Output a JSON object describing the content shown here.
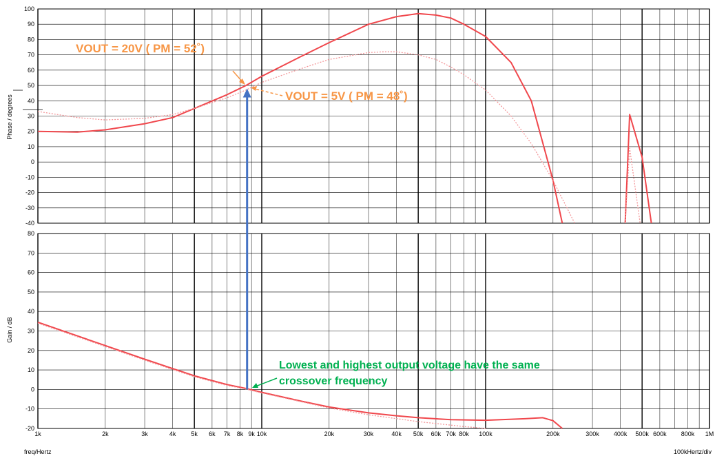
{
  "chart_data": [
    {
      "type": "line",
      "panel": "phase",
      "ylabel": "Phase / degrees",
      "ylim": [
        -40,
        100
      ],
      "yticks": [
        100,
        90,
        80,
        70,
        60,
        50,
        40,
        30,
        20,
        10,
        0,
        -10,
        -20,
        -30,
        -40
      ],
      "xscale": "log",
      "xlim": [
        1000,
        1000000
      ],
      "grid": true,
      "series": [
        {
          "color": "#f0474c",
          "style": "solid",
          "points": [
            [
              1000,
              20
            ],
            [
              1500,
              19.5
            ],
            [
              2000,
              21
            ],
            [
              3000,
              25
            ],
            [
              4000,
              29
            ],
            [
              5000,
              35
            ],
            [
              7000,
              44
            ],
            [
              8500,
              50
            ],
            [
              10000,
              56
            ],
            [
              15000,
              69
            ],
            [
              20000,
              78
            ],
            [
              30000,
              90
            ],
            [
              40000,
              95
            ],
            [
              50000,
              97
            ],
            [
              60000,
              96
            ],
            [
              70000,
              94
            ],
            [
              80000,
              90
            ],
            [
              100000,
              82
            ],
            [
              130000,
              65
            ],
            [
              160000,
              40
            ],
            [
              200000,
              -12
            ],
            [
              220000,
              -40
            ]
          ]
        },
        {
          "color": "#f3979a",
          "style": "dotted",
          "points": [
            [
              1000,
              33
            ],
            [
              1500,
              29
            ],
            [
              2000,
              27.5
            ],
            [
              3000,
              28.5
            ],
            [
              4000,
              31
            ],
            [
              5000,
              35
            ],
            [
              7000,
              42
            ],
            [
              8500,
              47
            ],
            [
              10000,
              52
            ],
            [
              15000,
              61
            ],
            [
              20000,
              67
            ],
            [
              30000,
              71.5
            ],
            [
              35000,
              72
            ],
            [
              40000,
              72
            ],
            [
              50000,
              70
            ],
            [
              60000,
              67
            ],
            [
              70000,
              62
            ],
            [
              80000,
              57
            ],
            [
              100000,
              47
            ],
            [
              130000,
              30
            ],
            [
              160000,
              12
            ],
            [
              200000,
              -12
            ],
            [
              250000,
              -40
            ]
          ]
        },
        {
          "color": "#f0474c",
          "style": "solid",
          "points": [
            [
              420000,
              -40
            ],
            [
              440000,
              31
            ],
            [
              480000,
              12
            ],
            [
              500000,
              3
            ],
            [
              550000,
              -40
            ]
          ]
        },
        {
          "color": "#f3979a",
          "style": "dotted",
          "points": [
            [
              420000,
              -40
            ],
            [
              440000,
              9
            ],
            [
              490000,
              -40
            ]
          ]
        }
      ]
    },
    {
      "type": "line",
      "panel": "gain",
      "ylabel": "Gain / dB",
      "xlabel": "freq/Hertz",
      "ylim": [
        -20,
        80
      ],
      "yticks": [
        80,
        70,
        60,
        50,
        40,
        30,
        20,
        10,
        0,
        -10,
        -20
      ],
      "xscale": "log",
      "xlim": [
        1000,
        1000000
      ],
      "grid": true,
      "series": [
        {
          "color": "#f0474c",
          "style": "solid",
          "points": [
            [
              1000,
              34.5
            ],
            [
              2000,
              22.5
            ],
            [
              3000,
              15.5
            ],
            [
              5000,
              7
            ],
            [
              7000,
              2.5
            ],
            [
              8500,
              0.5
            ],
            [
              10000,
              -1.5
            ],
            [
              15000,
              -6
            ],
            [
              20000,
              -9
            ],
            [
              30000,
              -12
            ],
            [
              40000,
              -13.5
            ],
            [
              50000,
              -14.5
            ],
            [
              70000,
              -15.5
            ],
            [
              100000,
              -15.8
            ],
            [
              150000,
              -15
            ],
            [
              180000,
              -14.5
            ],
            [
              200000,
              -16
            ],
            [
              220000,
              -20
            ]
          ]
        },
        {
          "color": "#f3979a",
          "style": "dotted",
          "points": [
            [
              1000,
              34
            ],
            [
              2000,
              22
            ],
            [
              3000,
              15
            ],
            [
              5000,
              6.5
            ],
            [
              7000,
              2
            ],
            [
              8500,
              0.2
            ],
            [
              10000,
              -1.8
            ],
            [
              20000,
              -9.5
            ],
            [
              30000,
              -13
            ],
            [
              50000,
              -16.5
            ],
            [
              80000,
              -19
            ],
            [
              100000,
              -20
            ]
          ]
        }
      ]
    }
  ],
  "x_tick_labels": [
    {
      "f": 1000,
      "label": "1k"
    },
    {
      "f": 2000,
      "label": "2k"
    },
    {
      "f": 3000,
      "label": "3k"
    },
    {
      "f": 4000,
      "label": "4k"
    },
    {
      "f": 5000,
      "label": "5k"
    },
    {
      "f": 6000,
      "label": "6k"
    },
    {
      "f": 7000,
      "label": "7k"
    },
    {
      "f": 8000,
      "label": "8k"
    },
    {
      "f": 9000,
      "label": "9k"
    },
    {
      "f": 10000,
      "label": "10k"
    },
    {
      "f": 20000,
      "label": "20k"
    },
    {
      "f": 30000,
      "label": "30k"
    },
    {
      "f": 40000,
      "label": "40k"
    },
    {
      "f": 50000,
      "label": "50k"
    },
    {
      "f": 60000,
      "label": "60k"
    },
    {
      "f": 70000,
      "label": "70k"
    },
    {
      "f": 80000,
      "label": "80k"
    },
    {
      "f": 100000,
      "label": "100k"
    },
    {
      "f": 200000,
      "label": "200k"
    },
    {
      "f": 300000,
      "label": "300k"
    },
    {
      "f": 400000,
      "label": "400k"
    },
    {
      "f": 500000,
      "label": "500k"
    },
    {
      "f": 600000,
      "label": "600k"
    },
    {
      "f": 800000,
      "label": "800k"
    },
    {
      "f": 1000000,
      "label": "1M"
    }
  ],
  "xlabel": "freq/Hertz",
  "xdiv_label": "100kHertz/div",
  "annotations": {
    "vout20": "VOUT = 20V ( PM = 52˚)",
    "vout5": "VOUT = 5V ( PM = 48˚)",
    "crossover_line1": "Lowest and highest output voltage have the same",
    "crossover_line2": "crossover frequency"
  },
  "crossover_marker_freq": 8600,
  "colors": {
    "trace_solid": "#f0474c",
    "trace_dotted": "#f3979a",
    "annotation_orange": "#f79646",
    "annotation_green": "#00b050",
    "arrow_blue": "#4472c4"
  }
}
